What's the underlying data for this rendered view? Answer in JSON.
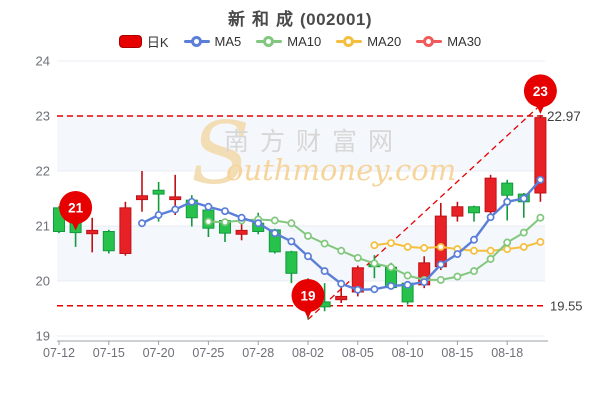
{
  "header": {
    "title_name": "新和成",
    "title_code": "(002001)"
  },
  "legend": {
    "items": [
      {
        "label": "日K",
        "type": "candle",
        "color": "#e60000"
      },
      {
        "label": "MA5",
        "type": "line",
        "color": "#5b7fd9"
      },
      {
        "label": "MA10",
        "type": "line",
        "color": "#82c77e"
      },
      {
        "label": "MA20",
        "type": "line",
        "color": "#f5bf3d"
      },
      {
        "label": "MA30",
        "type": "line",
        "color": "#f05a5a"
      }
    ]
  },
  "watermark": {
    "swoosh": "S",
    "line1": "南方财富网",
    "line2": "outhmoney.com"
  },
  "chart_data": {
    "type": "candlestick",
    "title": "新和成(002001)",
    "ylim": [
      19,
      24
    ],
    "y_ticks": [
      24,
      23,
      22,
      21,
      20,
      19
    ],
    "x_tick_labels": [
      "07-12",
      "07-15",
      "07-20",
      "07-25",
      "07-28",
      "08-02",
      "08-05",
      "08-10",
      "08-15",
      "08-18"
    ],
    "x_tick_candle_index": [
      0,
      3,
      6,
      9,
      12,
      15,
      18,
      21,
      24,
      27
    ],
    "grid": "horizontal gridlines with alternating light bands",
    "legend_position": "top",
    "candles": [
      {
        "o": 21.33,
        "h": 21.36,
        "l": 20.87,
        "c": 20.9
      },
      {
        "o": 21.08,
        "h": 21.1,
        "l": 20.62,
        "c": 20.88
      },
      {
        "o": 20.86,
        "h": 21.15,
        "l": 20.52,
        "c": 20.92
      },
      {
        "o": 20.9,
        "h": 20.93,
        "l": 20.5,
        "c": 20.55
      },
      {
        "o": 20.5,
        "h": 21.44,
        "l": 20.46,
        "c": 21.33
      },
      {
        "o": 21.48,
        "h": 22.0,
        "l": 21.26,
        "c": 21.55
      },
      {
        "o": 21.65,
        "h": 21.8,
        "l": 21.08,
        "c": 21.58
      },
      {
        "o": 21.48,
        "h": 21.93,
        "l": 21.2,
        "c": 21.53
      },
      {
        "o": 21.47,
        "h": 21.56,
        "l": 20.99,
        "c": 21.15
      },
      {
        "o": 21.29,
        "h": 21.32,
        "l": 20.8,
        "c": 20.96
      },
      {
        "o": 21.1,
        "h": 21.12,
        "l": 20.71,
        "c": 20.87
      },
      {
        "o": 20.85,
        "h": 21.05,
        "l": 20.74,
        "c": 20.92
      },
      {
        "o": 21.05,
        "h": 21.24,
        "l": 20.85,
        "c": 20.9
      },
      {
        "o": 20.93,
        "h": 20.95,
        "l": 20.5,
        "c": 20.53
      },
      {
        "o": 20.53,
        "h": 20.55,
        "l": 19.96,
        "c": 20.14
      },
      {
        "o": 20.0,
        "h": 20.05,
        "l": 19.3,
        "c": 19.5
      },
      {
        "o": 19.62,
        "h": 19.96,
        "l": 19.45,
        "c": 19.53
      },
      {
        "o": 19.66,
        "h": 19.93,
        "l": 19.6,
        "c": 19.72
      },
      {
        "o": 19.8,
        "h": 20.28,
        "l": 19.72,
        "c": 20.24
      },
      {
        "o": 20.3,
        "h": 20.47,
        "l": 20.05,
        "c": 20.26
      },
      {
        "o": 20.25,
        "h": 20.33,
        "l": 19.86,
        "c": 19.88
      },
      {
        "o": 19.96,
        "h": 19.98,
        "l": 19.57,
        "c": 19.62
      },
      {
        "o": 19.93,
        "h": 20.45,
        "l": 19.87,
        "c": 20.33
      },
      {
        "o": 20.26,
        "h": 21.42,
        "l": 20.2,
        "c": 21.18
      },
      {
        "o": 21.18,
        "h": 21.44,
        "l": 21.08,
        "c": 21.35
      },
      {
        "o": 21.35,
        "h": 21.37,
        "l": 21.08,
        "c": 21.24
      },
      {
        "o": 21.26,
        "h": 21.93,
        "l": 21.2,
        "c": 21.87
      },
      {
        "o": 21.78,
        "h": 21.84,
        "l": 21.1,
        "c": 21.56
      },
      {
        "o": 21.58,
        "h": 21.6,
        "l": 21.15,
        "c": 21.44
      },
      {
        "o": 21.6,
        "h": 23.02,
        "l": 21.44,
        "c": 22.97
      }
    ],
    "series": [
      {
        "name": "MA5",
        "start_index": 5,
        "values": [
          21.05,
          21.2,
          21.3,
          21.44,
          21.35,
          21.27,
          21.15,
          21.05,
          20.87,
          20.72,
          20.45,
          20.18,
          19.95,
          19.84,
          19.85,
          19.91,
          19.93,
          19.98,
          20.3,
          20.49,
          20.75,
          21.16,
          21.44,
          21.5,
          21.84
        ]
      },
      {
        "name": "MA10",
        "start_index": 9,
        "values": [
          21.08,
          21.07,
          21.1,
          21.12,
          21.1,
          21.05,
          20.82,
          20.68,
          20.55,
          20.42,
          20.32,
          20.25,
          20.1,
          20.02,
          20.02,
          20.08,
          20.18,
          20.4,
          20.7,
          20.88,
          21.15
        ]
      },
      {
        "name": "MA20",
        "start_index": 19,
        "values": [
          20.65,
          20.69,
          20.62,
          20.6,
          20.62,
          20.58,
          20.55,
          20.55,
          20.58,
          20.62,
          20.71
        ]
      },
      {
        "name": "MA30",
        "start_index": null,
        "values": []
      }
    ],
    "annotations": {
      "ref_lines": [
        {
          "price": 23.0,
          "label": ""
        },
        {
          "price": 19.55,
          "label": "19.55"
        }
      ],
      "price_tag": {
        "text": "22.97",
        "price": 23.0
      },
      "trend_line": {
        "from_index": 15,
        "from_price": 19.3,
        "to_index": 29,
        "to_price": 23.2
      },
      "balloons": [
        {
          "text": "21",
          "index": 1,
          "price": 20.9
        },
        {
          "text": "19",
          "index": 15,
          "price": 19.3
        },
        {
          "text": "23",
          "index": 29,
          "price": 23.02
        }
      ]
    },
    "colors": {
      "up": "#e82126",
      "up_border": "#bf1115",
      "down": "#27c24c",
      "down_border": "#129a3e",
      "ma5": "#5b7fd9",
      "ma10": "#82c77e",
      "ma20": "#f5bf3d",
      "ma30": "#f05a5a",
      "annotation_red": "#e60000",
      "band": "#f4f7fb",
      "grid": "#e8ecf3",
      "axis_line": "#9aa0a6",
      "axis_text": "#6e7079",
      "value_text": "#3f3f3f"
    }
  }
}
